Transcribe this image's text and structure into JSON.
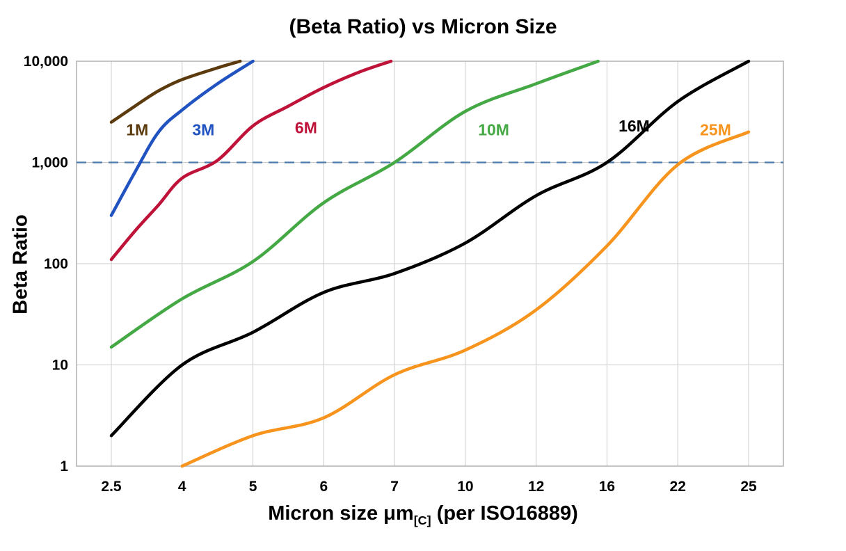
{
  "chart_data": {
    "type": "line",
    "title": "(Beta Ratio) vs Micron Size",
    "ylabel": "Beta Ratio",
    "xlabel": {
      "prefix": "Micron size μm",
      "sub": "[C]",
      "suffix": " (per ISO16889)"
    },
    "x_scale": "ordinal",
    "y_scale": "log",
    "grid": true,
    "legend_position": "inline-labels",
    "x_categories": [
      2.5,
      4,
      5,
      6,
      7,
      10,
      12,
      16,
      22,
      25
    ],
    "x_tick_labels": [
      "2.5",
      "4",
      "5",
      "6",
      "7",
      "10",
      "12",
      "16",
      "22",
      "25"
    ],
    "y_ticks": [
      1,
      10,
      100,
      1000,
      10000
    ],
    "y_tick_labels": [
      "1",
      "10",
      "100",
      "1,000",
      "10,000"
    ],
    "ylim": [
      1,
      10000
    ],
    "reference_line": {
      "y": 1000,
      "style": "dashed",
      "color": "#4a7aaa"
    },
    "series": [
      {
        "name": "1M",
        "color": "#5b3a0e",
        "points": [
          [
            2.5,
            2500
          ],
          [
            3,
            3600
          ],
          [
            3.5,
            5100
          ],
          [
            4,
            6600
          ],
          [
            4.5,
            8600
          ],
          [
            4.82,
            10000
          ]
        ]
      },
      {
        "name": "3M",
        "color": "#2052c0",
        "points": [
          [
            2.5,
            300
          ],
          [
            3,
            800
          ],
          [
            3.5,
            2000
          ],
          [
            4,
            3300
          ],
          [
            4.5,
            6000
          ],
          [
            5,
            10000
          ]
        ]
      },
      {
        "name": "6M",
        "color": "#bf1238",
        "points": [
          [
            2.5,
            110
          ],
          [
            3,
            210
          ],
          [
            3.5,
            380
          ],
          [
            4,
            700
          ],
          [
            4.5,
            1050
          ],
          [
            5,
            2300
          ],
          [
            5.5,
            3600
          ],
          [
            6,
            5500
          ],
          [
            6.5,
            7800
          ],
          [
            6.95,
            10000
          ]
        ]
      },
      {
        "name": "10M",
        "color": "#44a944",
        "points": [
          [
            2.5,
            15
          ],
          [
            4,
            45
          ],
          [
            5,
            105
          ],
          [
            6,
            400
          ],
          [
            7,
            1000
          ],
          [
            10,
            3200
          ],
          [
            12,
            6000
          ],
          [
            15.5,
            10000
          ]
        ]
      },
      {
        "name": "16M",
        "color": "#000000",
        "points": [
          [
            2.5,
            2
          ],
          [
            4,
            10
          ],
          [
            5,
            21
          ],
          [
            6,
            52
          ],
          [
            7,
            80
          ],
          [
            10,
            160
          ],
          [
            12,
            470
          ],
          [
            16,
            1000
          ],
          [
            22,
            4000
          ],
          [
            25,
            10000
          ]
        ]
      },
      {
        "name": "25M",
        "color": "#f7941e",
        "points": [
          [
            4,
            1
          ],
          [
            5,
            2
          ],
          [
            6,
            3
          ],
          [
            7,
            8
          ],
          [
            10,
            14
          ],
          [
            12,
            35
          ],
          [
            16,
            150
          ],
          [
            22,
            950
          ],
          [
            25,
            2000
          ]
        ]
      }
    ],
    "series_labels": [
      {
        "text": "1M",
        "color": "#5b3a0e",
        "x": 3.05,
        "y": 2100
      },
      {
        "text": "3M",
        "color": "#2052c0",
        "x": 4.3,
        "y": 2100
      },
      {
        "text": "6M",
        "color": "#bf1238",
        "x": 5.75,
        "y": 2200
      },
      {
        "text": "10M",
        "color": "#44a944",
        "x": 10.8,
        "y": 2100
      },
      {
        "text": "16M",
        "color": "#000000",
        "x": 18.3,
        "y": 2300
      },
      {
        "text": "25M",
        "color": "#f7941e",
        "x": 23.6,
        "y": 2100
      }
    ]
  }
}
